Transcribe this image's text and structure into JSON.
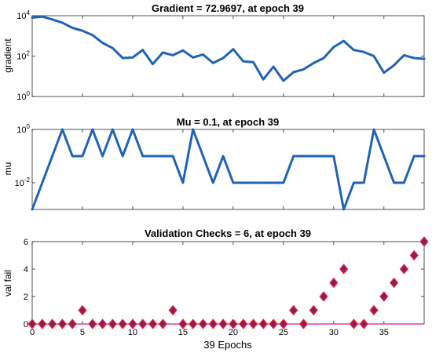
{
  "chart_data": [
    {
      "type": "line",
      "title": "Gradient = 72.9697, at epoch 39",
      "ylabel": "gradient",
      "xlabel": "",
      "yscale": "log",
      "xlim": [
        0,
        39
      ],
      "ylim": [
        1,
        10000
      ],
      "yticks": [
        {
          "v": 1,
          "b": "10",
          "e": "0"
        },
        {
          "v": 100,
          "b": "10",
          "e": "2"
        },
        {
          "v": 10000,
          "b": "10",
          "e": "4"
        }
      ],
      "x": [
        0,
        1,
        2,
        3,
        4,
        5,
        6,
        7,
        8,
        9,
        10,
        11,
        12,
        13,
        14,
        15,
        16,
        17,
        18,
        19,
        20,
        21,
        22,
        23,
        24,
        25,
        26,
        27,
        28,
        29,
        30,
        31,
        32,
        33,
        34,
        35,
        36,
        37,
        38,
        39
      ],
      "values": [
        8000,
        9000,
        6500,
        4500,
        2500,
        1800,
        1100,
        450,
        250,
        80,
        85,
        200,
        40,
        150,
        110,
        190,
        85,
        120,
        45,
        80,
        220,
        55,
        50,
        7,
        30,
        6,
        16,
        22,
        45,
        80,
        280,
        560,
        200,
        160,
        100,
        15,
        35,
        110,
        80,
        73
      ],
      "color": "#1f63b6",
      "grid": false
    },
    {
      "type": "line",
      "title": "Mu = 0.1, at epoch 39",
      "ylabel": "mu",
      "xlabel": "",
      "yscale": "log",
      "xlim": [
        0,
        39
      ],
      "ylim": [
        0.001,
        1
      ],
      "yticks": [
        {
          "v": 0.01,
          "b": "10",
          "e": "-2"
        },
        {
          "v": 1,
          "b": "10",
          "e": "0"
        }
      ],
      "x": [
        0,
        1,
        2,
        3,
        4,
        5,
        6,
        7,
        8,
        9,
        10,
        11,
        12,
        13,
        14,
        15,
        16,
        17,
        18,
        19,
        20,
        21,
        22,
        23,
        24,
        25,
        26,
        27,
        28,
        29,
        30,
        31,
        32,
        33,
        34,
        35,
        36,
        37,
        38,
        39
      ],
      "values": [
        0.001,
        0.01,
        0.1,
        1,
        0.1,
        0.1,
        1,
        0.1,
        1,
        0.1,
        1,
        0.1,
        0.1,
        0.1,
        0.1,
        0.01,
        1,
        0.1,
        0.01,
        0.1,
        0.01,
        0.01,
        0.01,
        0.01,
        0.01,
        0.01,
        0.1,
        0.1,
        0.1,
        0.1,
        0.1,
        0.001,
        0.01,
        0.01,
        1,
        0.1,
        0.01,
        0.01,
        0.1,
        0.1
      ],
      "color": "#1f63b6",
      "grid": false
    },
    {
      "type": "scatter",
      "title": "Validation Checks = 6, at epoch 39",
      "ylabel": "val fail",
      "xlabel": "39 Epochs",
      "yscale": "linear",
      "xlim": [
        0,
        39
      ],
      "ylim": [
        0,
        6
      ],
      "xticks": [
        0,
        5,
        10,
        15,
        20,
        25,
        30,
        35
      ],
      "yticks": [
        0,
        2,
        4,
        6
      ],
      "x": [
        0,
        1,
        2,
        3,
        4,
        5,
        6,
        7,
        8,
        9,
        10,
        11,
        12,
        13,
        14,
        15,
        16,
        17,
        18,
        19,
        20,
        21,
        22,
        23,
        24,
        25,
        26,
        27,
        28,
        29,
        30,
        31,
        32,
        33,
        34,
        35,
        36,
        37,
        38,
        39
      ],
      "values": [
        0,
        0,
        0,
        0,
        0,
        1,
        0,
        0,
        0,
        0,
        0,
        0,
        0,
        0,
        1,
        0,
        0,
        0,
        0,
        0,
        0,
        0,
        0,
        0,
        0,
        0,
        1,
        0,
        1,
        2,
        3,
        4,
        0,
        0,
        1,
        2,
        3,
        4,
        5,
        6
      ],
      "marker": "diamond",
      "color": "#8b1c62",
      "edge_color": "#ff2a2a",
      "baseline_color": "#d81e8f",
      "grid": false
    }
  ]
}
